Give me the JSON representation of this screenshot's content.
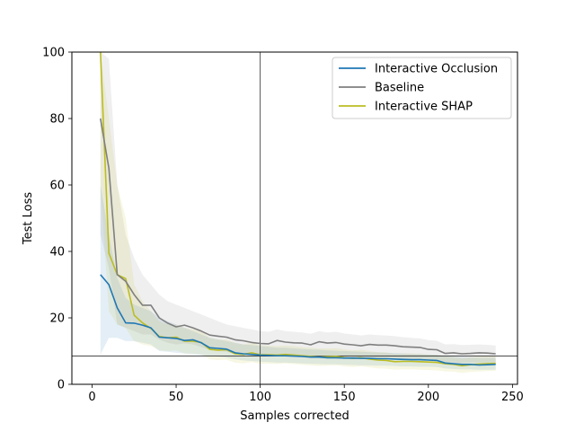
{
  "chart_data": {
    "type": "line",
    "title": "",
    "xlabel": "Samples corrected",
    "ylabel": "Test Loss",
    "xlim": [
      -12,
      253
    ],
    "ylim": [
      0,
      100
    ],
    "xticks": [
      0,
      50,
      100,
      150,
      200,
      250
    ],
    "yticks": [
      0,
      20,
      40,
      60,
      80,
      100
    ],
    "grid": false,
    "legend_position": "upper-right",
    "reference_lines": {
      "vertical_x": 100,
      "horizontal_y": 8.5
    },
    "x": [
      5,
      10,
      15,
      20,
      25,
      30,
      35,
      40,
      45,
      50,
      55,
      60,
      65,
      70,
      75,
      80,
      85,
      90,
      95,
      100,
      105,
      110,
      115,
      120,
      125,
      130,
      135,
      140,
      145,
      150,
      155,
      160,
      165,
      170,
      175,
      180,
      185,
      190,
      195,
      200,
      205,
      210,
      215,
      220,
      225,
      230,
      235,
      240
    ],
    "series": [
      {
        "name": "Interactive Occlusion",
        "color": "#1f77b4",
        "values": [
          33,
          30,
          23,
          18.5,
          18.4,
          17.8,
          17.0,
          14.2,
          14.0,
          13.8,
          13.2,
          13.4,
          12.5,
          11,
          10.8,
          10.6,
          9.5,
          9.2,
          9.0,
          8.8,
          8.7,
          8.6,
          8.6,
          8.5,
          8.4,
          8.2,
          8.2,
          8.0,
          8.0,
          7.9,
          7.9,
          7.8,
          7.8,
          7.7,
          7.7,
          7.6,
          7.5,
          7.4,
          7.4,
          7.3,
          7.2,
          6.4,
          6.2,
          6.0,
          6.0,
          5.8,
          5.9,
          6.0
        ],
        "band_upper": [
          60,
          45,
          32,
          26,
          24,
          23,
          22,
          20,
          19,
          18,
          17,
          16,
          15,
          14,
          13.5,
          13,
          12.5,
          12,
          11.8,
          11.5,
          11.3,
          11,
          11,
          10.8,
          10.6,
          10.5,
          10.4,
          10.2,
          10.1,
          10,
          9.9,
          9.8,
          9.7,
          9.6,
          9.5,
          9.4,
          9.3,
          9.2,
          9.1,
          9,
          8.9,
          8.5,
          8.3,
          8.2,
          8.1,
          8,
          8,
          8
        ],
        "band_lower": [
          9,
          14,
          14,
          13,
          13,
          12.5,
          12,
          10,
          9.8,
          9.5,
          9.3,
          9,
          8.8,
          8.5,
          8.3,
          8,
          7.5,
          7.2,
          7,
          6.8,
          6.7,
          6.5,
          6.5,
          6.4,
          6.3,
          6.2,
          6.1,
          6,
          6,
          5.9,
          5.8,
          5.7,
          5.7,
          5.6,
          5.6,
          5.5,
          5.4,
          5.4,
          5.3,
          5.3,
          5.2,
          4.8,
          4.6,
          4.5,
          4.5,
          4.4,
          4.4,
          4.4
        ]
      },
      {
        "name": "Baseline",
        "color": "#7f7f7f",
        "values": [
          80,
          65,
          33,
          31,
          27,
          23.8,
          23.8,
          20,
          18.4,
          17.3,
          17.8,
          17.0,
          16.0,
          14.8,
          14.5,
          14.2,
          13.4,
          13.1,
          12.6,
          12.3,
          12.2,
          13.2,
          12.7,
          12.5,
          12.4,
          11.9,
          12.8,
          12.4,
          12.6,
          12.1,
          11.9,
          11.6,
          12.0,
          11.8,
          11.8,
          11.6,
          11.3,
          11.2,
          11.1,
          10.5,
          10.4,
          9.3,
          9.5,
          9.2,
          9.3,
          9.5,
          9.4,
          9.2
        ],
        "band_upper": [
          100,
          98,
          60,
          45,
          38,
          33,
          30,
          27,
          25,
          24,
          23,
          22,
          21,
          20,
          19,
          18,
          17.5,
          17,
          16.5,
          16,
          15.8,
          16.5,
          16,
          15.8,
          15.6,
          15.2,
          16,
          15.6,
          15.8,
          15.3,
          15,
          14.7,
          15,
          14.8,
          14.7,
          14.5,
          14.2,
          14,
          13.8,
          13.3,
          13.1,
          12,
          12.1,
          11.8,
          11.9,
          12,
          11.9,
          11.7
        ],
        "band_lower": [
          45,
          35,
          18,
          17,
          16,
          15,
          15,
          13.5,
          12.5,
          12,
          12.3,
          12,
          11.2,
          10.3,
          10,
          9.8,
          9.2,
          9,
          8.7,
          8.5,
          8.4,
          9,
          8.7,
          8.5,
          8.4,
          8.1,
          8.7,
          8.5,
          8.6,
          8.3,
          8.1,
          7.9,
          8.2,
          8,
          8,
          7.9,
          7.7,
          7.6,
          7.5,
          7.2,
          7.1,
          6.4,
          6.6,
          6.4,
          6.5,
          6.6,
          6.5,
          6.4
        ]
      },
      {
        "name": "Interactive SHAP",
        "color": "#bcbd22",
        "values": [
          100,
          39.5,
          33,
          31.8,
          20.8,
          18.5,
          16.8,
          14.4,
          14.0,
          14.2,
          13.0,
          13.0,
          12.6,
          10.5,
          10.3,
          10.4,
          9.2,
          9.0,
          9.5,
          8.9,
          8.9,
          8.8,
          9.0,
          8.8,
          8.6,
          8.4,
          8.2,
          8.3,
          8.4,
          8.0,
          7.8,
          8.0,
          7.6,
          7.3,
          7.2,
          6.8,
          6.9,
          6.9,
          6.8,
          6.7,
          6.6,
          6.2,
          6.0,
          5.6,
          5.9,
          6.1,
          6.2,
          6.3
        ],
        "band_upper": [
          100,
          80,
          60,
          50,
          30,
          25,
          22,
          19,
          18,
          18,
          17,
          16.5,
          16,
          14,
          13.5,
          13.5,
          12.5,
          12,
          12.5,
          11.8,
          11.6,
          11.5,
          11.7,
          11.5,
          11.2,
          11,
          10.8,
          10.8,
          10.9,
          10.5,
          10.2,
          10.4,
          10,
          9.7,
          9.6,
          9.2,
          9.3,
          9.3,
          9.2,
          9,
          8.9,
          8.4,
          8.2,
          7.8,
          8.1,
          8.3,
          8.4,
          8.5
        ],
        "band_lower": [
          60,
          22,
          18,
          17,
          13,
          12,
          11.5,
          10.3,
          10,
          10.2,
          9.3,
          9.3,
          9,
          7.5,
          7.3,
          7.4,
          6.5,
          6.3,
          6.7,
          6.2,
          6.2,
          6.1,
          6.3,
          6.1,
          5.9,
          5.7,
          5.5,
          5.6,
          5.7,
          5.4,
          5.2,
          5.4,
          5.1,
          4.8,
          4.7,
          4.4,
          4.5,
          4.5,
          4.4,
          4.3,
          4.2,
          3.9,
          3.8,
          3.4,
          3.7,
          3.9,
          4,
          4.1
        ]
      }
    ]
  }
}
